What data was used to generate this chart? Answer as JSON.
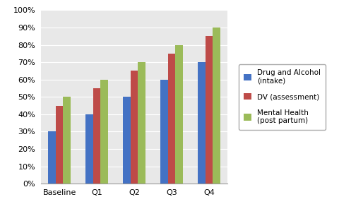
{
  "categories": [
    "Baseline",
    "Q1",
    "Q2",
    "Q3",
    "Q4"
  ],
  "series": [
    {
      "name": "Drug and Alcohol\n(intake)",
      "values": [
        0.3,
        0.4,
        0.5,
        0.6,
        0.7
      ],
      "color": "#4472C4"
    },
    {
      "name": "DV (assessment)",
      "values": [
        0.45,
        0.55,
        0.65,
        0.75,
        0.85
      ],
      "color": "#BE4B48"
    },
    {
      "name": "Mental Health\n(post partum)",
      "values": [
        0.5,
        0.6,
        0.7,
        0.8,
        0.9
      ],
      "color": "#9BBB59"
    }
  ],
  "ylim": [
    0.0,
    1.0
  ],
  "yticks": [
    0.0,
    0.1,
    0.2,
    0.3,
    0.4,
    0.5,
    0.6,
    0.7,
    0.8,
    0.9,
    1.0
  ],
  "background_color": "#FFFFFF",
  "plot_bg_color": "#E8E8E8",
  "grid_color": "#FFFFFF",
  "bar_width": 0.2,
  "figsize": [
    4.81,
    2.89
  ],
  "dpi": 100,
  "legend_fontsize": 7.5,
  "tick_fontsize": 8
}
